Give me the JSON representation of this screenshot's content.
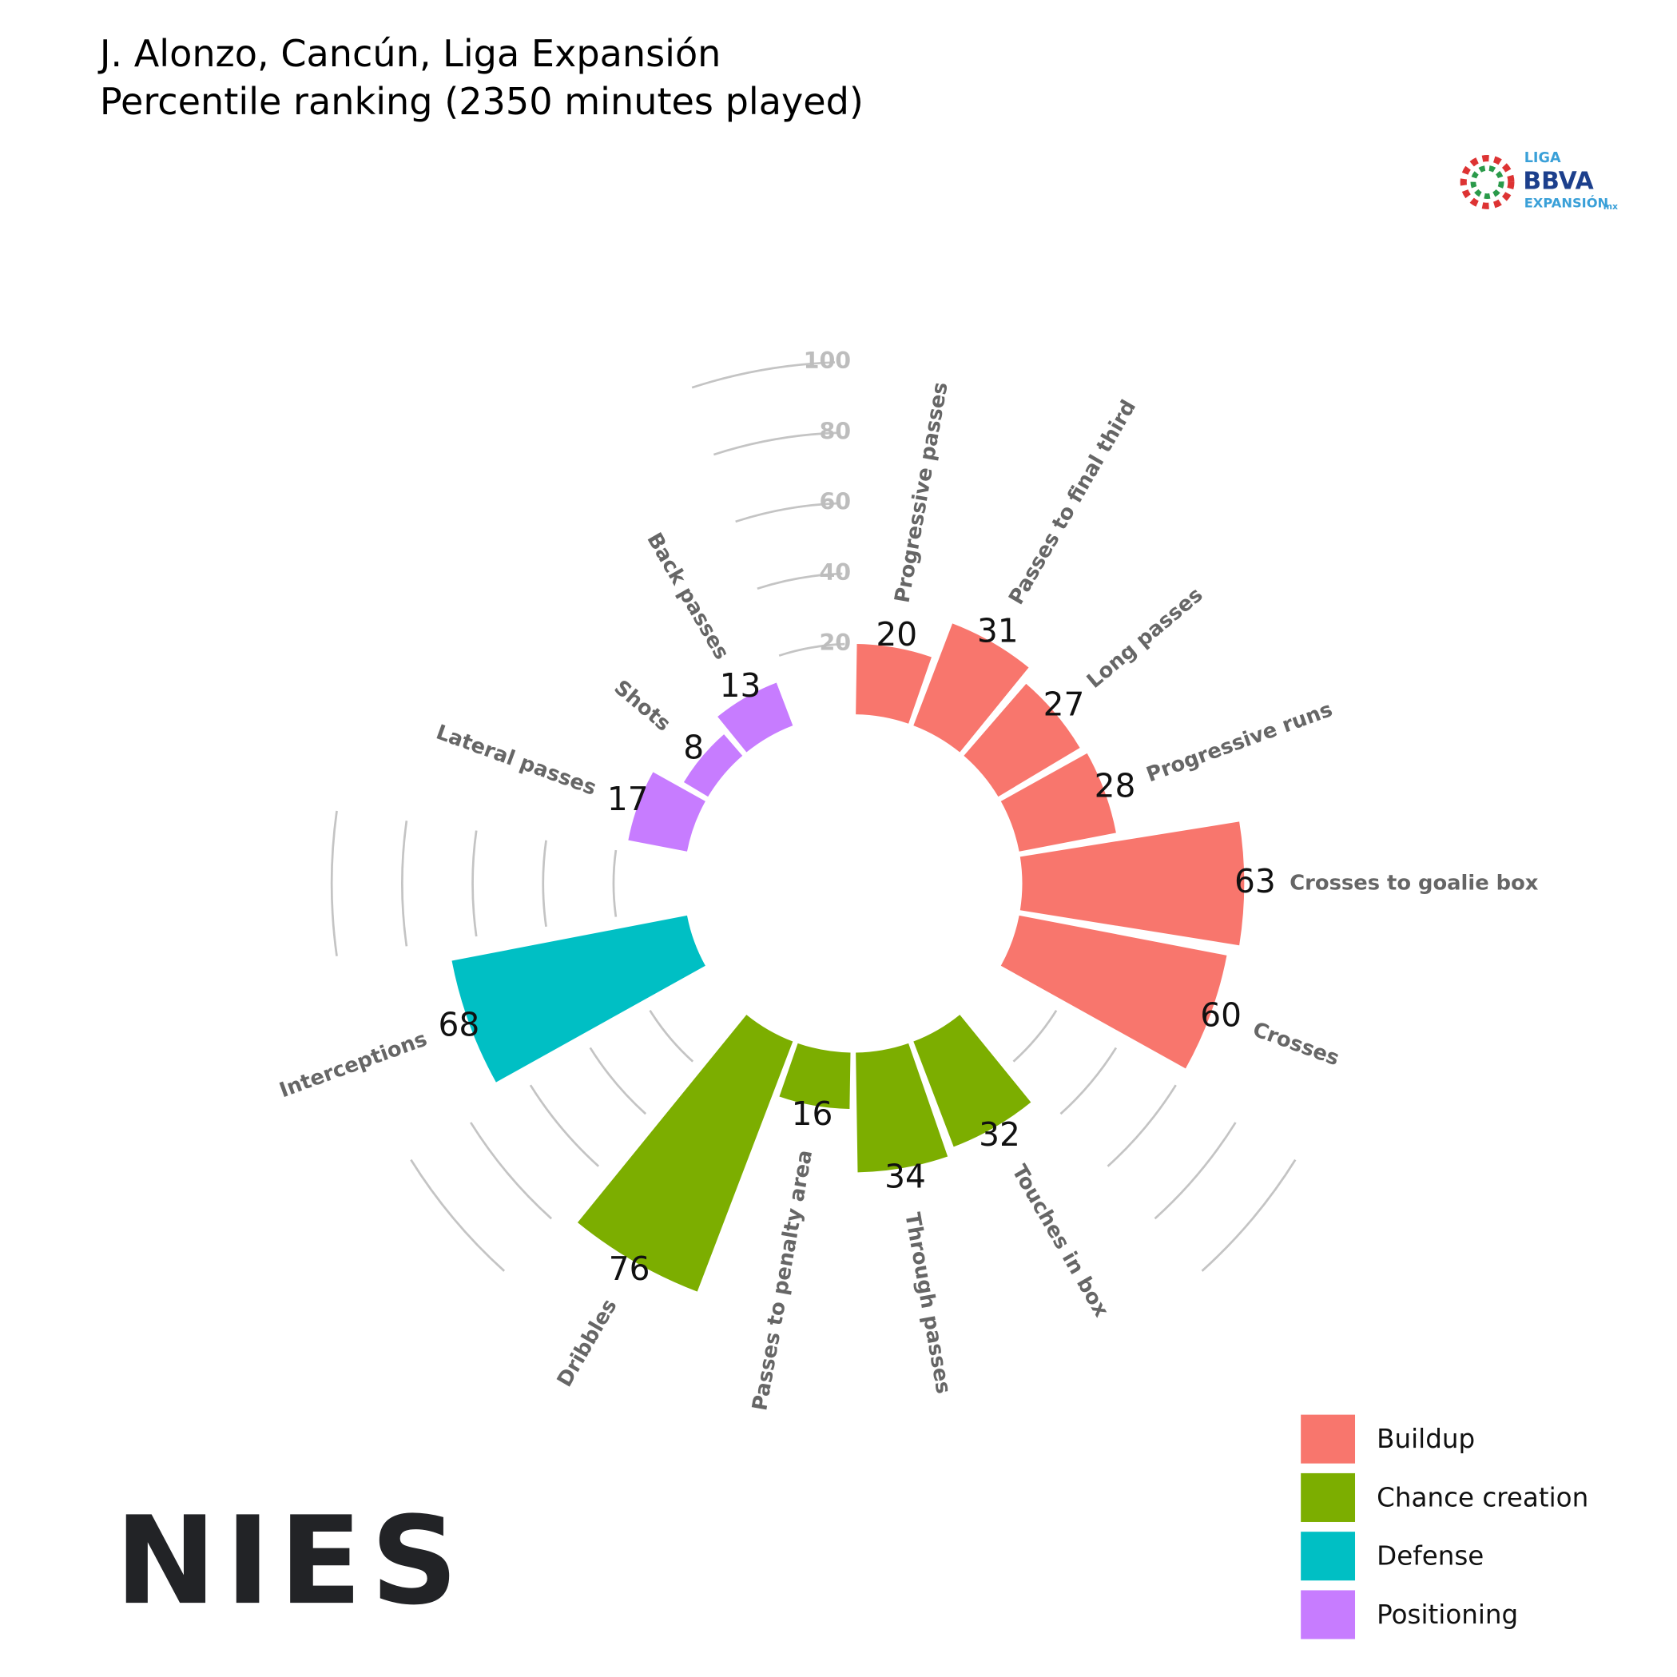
{
  "chart_data": {
    "type": "polar-bar",
    "title": "J. Alonzo, Cancún, Liga Expansión",
    "subtitle": "Percentile ranking (2350 minutes played)",
    "ylim": [
      0,
      100
    ],
    "yticks": [
      20,
      40,
      60,
      80,
      100
    ],
    "legend": "bottom-right",
    "series": [
      {
        "name": "Buildup",
        "color": "#F8766D",
        "categories": [
          "Progressive passes",
          "Passes to final third",
          "Long passes",
          "Progressive runs",
          "Crosses to goalie box",
          "Crosses"
        ],
        "values": [
          20,
          31,
          27,
          28,
          63,
          60
        ]
      },
      {
        "name": "Chance creation",
        "color": "#7CAE00",
        "categories": [
          "Touches in box",
          "Through passes",
          "Passes to penalty area",
          "Dribbles"
        ],
        "values": [
          32,
          34,
          16,
          76
        ]
      },
      {
        "name": "Defense",
        "color": "#00BFC4",
        "categories": [
          "Interceptions"
        ],
        "values": [
          68
        ]
      },
      {
        "name": "Positioning",
        "color": "#C77CFF",
        "categories": [
          "Lateral passes",
          "Shots",
          "Back passes"
        ],
        "values": [
          17,
          8,
          13
        ]
      }
    ]
  },
  "logos": {
    "league": [
      "LIGA",
      "BBVA",
      "EXPANSIÓN",
      "mx"
    ],
    "brand": "NIES"
  }
}
